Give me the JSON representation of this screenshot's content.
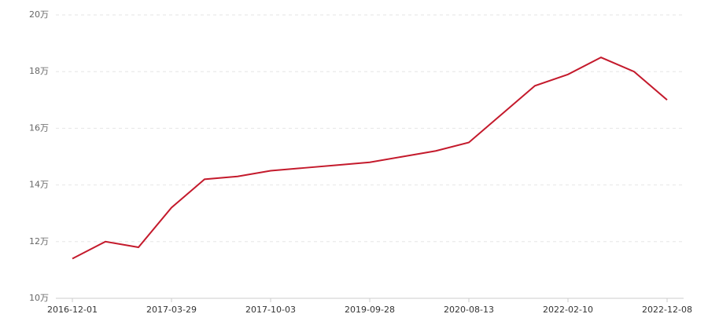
{
  "chart_data": {
    "type": "line",
    "categories": [
      "2016-12-01",
      null,
      null,
      "2017-03-29",
      null,
      null,
      "2017-10-03",
      null,
      null,
      "2019-09-28",
      null,
      null,
      "2020-08-13",
      null,
      null,
      "2022-02-10",
      null,
      null,
      "2022-12-08"
    ],
    "series": [
      {
        "color": "#c41a2c",
        "values": [
          11.4,
          12.0,
          11.8,
          13.2,
          14.2,
          14.3,
          14.5,
          14.6,
          14.7,
          14.8,
          15.0,
          15.2,
          15.5,
          16.5,
          17.5,
          17.9,
          18.5,
          18.0,
          17.0
        ]
      }
    ],
    "ylim": [
      10,
      20
    ],
    "yticks": [
      {
        "value": 10,
        "label": "10万"
      },
      {
        "value": 12,
        "label": "12万"
      },
      {
        "value": 14,
        "label": "14万"
      },
      {
        "value": 16,
        "label": "16万"
      },
      {
        "value": 18,
        "label": "18万"
      },
      {
        "value": 20,
        "label": "20万"
      }
    ],
    "grid": true
  }
}
